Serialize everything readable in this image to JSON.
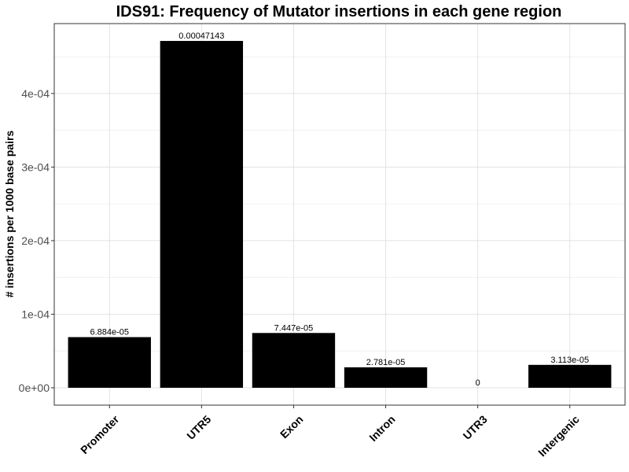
{
  "chart_data": {
    "type": "bar",
    "title": "IDS91: Frequency of Mutator insertions in each gene region",
    "xlabel": "",
    "ylabel": "# insertions per 1000 base pairs",
    "categories": [
      "Promoter",
      "UTR5",
      "Exon",
      "Intron",
      "UTR3",
      "Intergenic"
    ],
    "values": [
      6.884e-05,
      0.00047143,
      7.447e-05,
      2.781e-05,
      0,
      3.113e-05
    ],
    "data_labels": [
      "6.884e-05",
      "0.00047143",
      "7.447e-05",
      "2.781e-05",
      "0",
      "3.113e-05"
    ],
    "yticks": [
      0,
      0.0001,
      0.0002,
      0.0003,
      0.0004
    ],
    "ytick_labels": [
      "0e+00",
      "1e-04",
      "2e-04",
      "3e-04",
      "4e-04"
    ],
    "ylim": [
      -2.36e-05,
      0.000495
    ],
    "bar_color": "#000000",
    "grid": true,
    "legend": "none"
  }
}
